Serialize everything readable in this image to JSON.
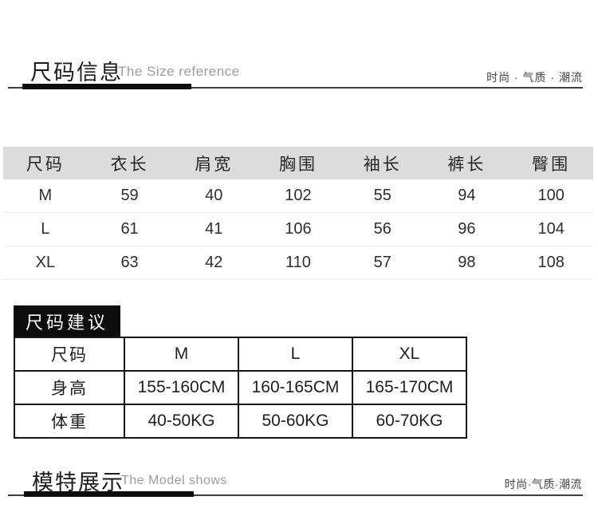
{
  "size_info_header": {
    "title_zh": "尺码信息",
    "title_en": "The Size reference",
    "tagline": "时尚 · 气质 · 潮流"
  },
  "size_table": {
    "columns": [
      "尺码",
      "衣长",
      "肩宽",
      "胸围",
      "袖长",
      "裤长",
      "臀围"
    ],
    "rows": [
      [
        "M",
        "59",
        "40",
        "102",
        "55",
        "94",
        "100"
      ],
      [
        "L",
        "61",
        "41",
        "106",
        "56",
        "96",
        "104"
      ],
      [
        "XL",
        "63",
        "42",
        "110",
        "57",
        "98",
        "108"
      ]
    ]
  },
  "size_suggestion": {
    "label": "尺码建议",
    "table": {
      "rows": [
        [
          "尺码",
          "M",
          "L",
          "XL"
        ],
        [
          "身高",
          "155-160CM",
          "160-165CM",
          "165-170CM"
        ],
        [
          "体重",
          "40-50KG",
          "50-60KG",
          "60-70KG"
        ]
      ]
    }
  },
  "model_header": {
    "title_zh": "模特展示",
    "title_en": "The Model shows",
    "tagline": "时尚·气质·潮流"
  },
  "colors": {
    "header_band": "#dcdcdc",
    "accent_black": "#0d0d0d",
    "subtitle_gray": "#9c9c9c",
    "tagline_gray": "#454545",
    "row_divider": "#ebebeb",
    "table_border": "#161616"
  }
}
